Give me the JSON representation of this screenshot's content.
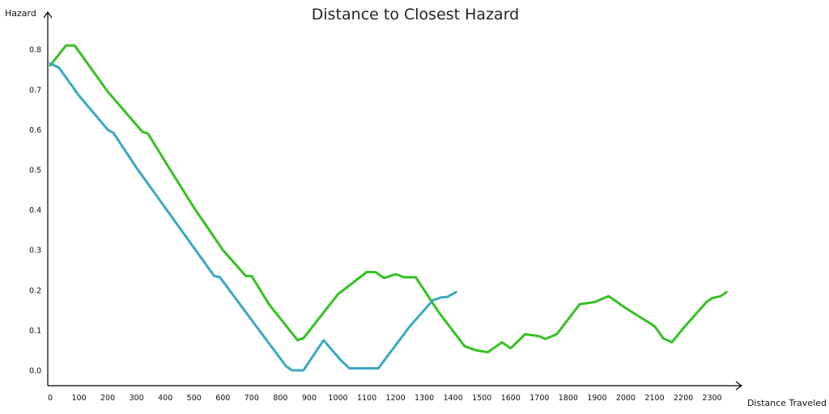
{
  "chart_data": {
    "type": "line",
    "title": "Distance to Closest Hazard",
    "xlabel": "Distance Traveled",
    "ylabel": "Hazard",
    "xlim": [
      0,
      2400
    ],
    "ylim": [
      0,
      0.85
    ],
    "x_ticks": [
      "0",
      "100",
      "200",
      "300",
      "400",
      "500",
      "600",
      "700",
      "800",
      "900",
      "1000",
      "1100",
      "1200",
      "1300",
      "1400",
      "1500",
      "1600",
      "1700",
      "1800",
      "1900",
      "2000",
      "2100",
      "2200",
      "2300"
    ],
    "y_ticks": [
      "0.0",
      "0.1",
      "0.2",
      "0.3",
      "0.4",
      "0.5",
      "0.6",
      "0.7",
      "0.8"
    ],
    "grid": false,
    "colors": {
      "green": "#33c21f",
      "blue": "#39a9c3",
      "axis": "#000000"
    },
    "series": [
      {
        "color": "#33c21f",
        "points": [
          [
            0,
            0.76
          ],
          [
            55,
            0.81
          ],
          [
            85,
            0.81
          ],
          [
            200,
            0.695
          ],
          [
            320,
            0.595
          ],
          [
            340,
            0.59
          ],
          [
            400,
            0.52
          ],
          [
            500,
            0.405
          ],
          [
            600,
            0.3
          ],
          [
            680,
            0.235
          ],
          [
            700,
            0.235
          ],
          [
            760,
            0.165
          ],
          [
            860,
            0.075
          ],
          [
            880,
            0.08
          ],
          [
            1000,
            0.19
          ],
          [
            1100,
            0.245
          ],
          [
            1130,
            0.245
          ],
          [
            1160,
            0.23
          ],
          [
            1200,
            0.24
          ],
          [
            1230,
            0.232
          ],
          [
            1270,
            0.232
          ],
          [
            1350,
            0.145
          ],
          [
            1440,
            0.06
          ],
          [
            1480,
            0.05
          ],
          [
            1520,
            0.045
          ],
          [
            1570,
            0.07
          ],
          [
            1600,
            0.055
          ],
          [
            1650,
            0.09
          ],
          [
            1700,
            0.085
          ],
          [
            1720,
            0.078
          ],
          [
            1760,
            0.09
          ],
          [
            1840,
            0.165
          ],
          [
            1890,
            0.17
          ],
          [
            1940,
            0.185
          ],
          [
            2000,
            0.155
          ],
          [
            2100,
            0.11
          ],
          [
            2130,
            0.08
          ],
          [
            2160,
            0.07
          ],
          [
            2200,
            0.105
          ],
          [
            2280,
            0.17
          ],
          [
            2300,
            0.18
          ],
          [
            2330,
            0.185
          ],
          [
            2350,
            0.195
          ]
        ]
      },
      {
        "color": "#39a9c3",
        "points": [
          [
            0,
            0.765
          ],
          [
            30,
            0.755
          ],
          [
            100,
            0.685
          ],
          [
            200,
            0.6
          ],
          [
            220,
            0.592
          ],
          [
            300,
            0.505
          ],
          [
            400,
            0.405
          ],
          [
            500,
            0.305
          ],
          [
            570,
            0.235
          ],
          [
            590,
            0.232
          ],
          [
            700,
            0.125
          ],
          [
            820,
            0.01
          ],
          [
            840,
            0.0
          ],
          [
            880,
            0.0
          ],
          [
            950,
            0.075
          ],
          [
            1010,
            0.025
          ],
          [
            1040,
            0.005
          ],
          [
            1140,
            0.005
          ],
          [
            1250,
            0.11
          ],
          [
            1330,
            0.175
          ],
          [
            1360,
            0.182
          ],
          [
            1380,
            0.183
          ],
          [
            1410,
            0.195
          ]
        ]
      }
    ]
  }
}
